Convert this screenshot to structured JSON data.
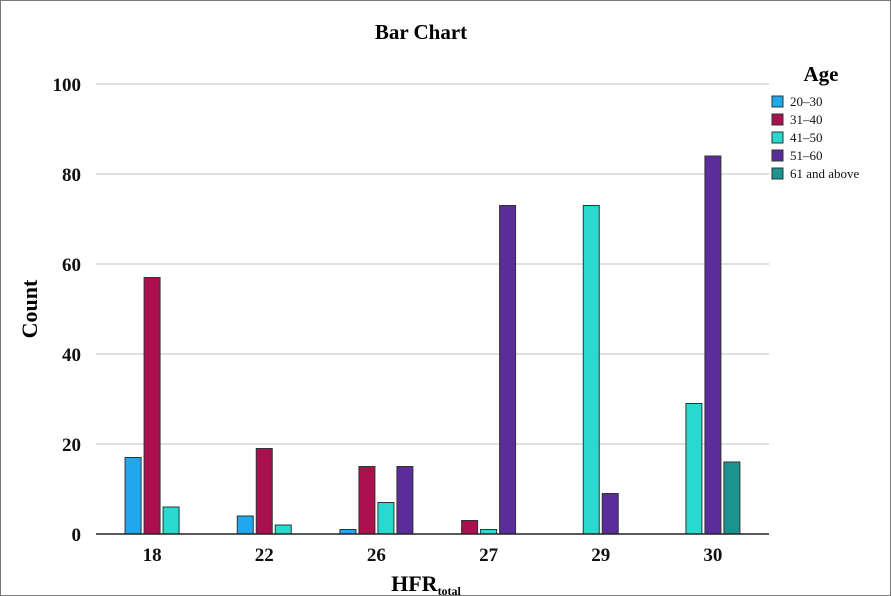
{
  "chart_data": {
    "type": "bar",
    "title": "Bar Chart",
    "xlabel": "HFR",
    "xlabel_subscript": "total",
    "ylabel": "Count",
    "ylim": [
      0,
      100
    ],
    "yticks": [
      0,
      20,
      40,
      60,
      80,
      100
    ],
    "grid": "horizontal",
    "legend_title": "Age",
    "legend_position": "top-right",
    "categories": [
      "18",
      "22",
      "26",
      "27",
      "29",
      "30"
    ],
    "series": [
      {
        "name": "20–30",
        "color": "#1fa8ee",
        "values": [
          17,
          4,
          1,
          0,
          0,
          0
        ]
      },
      {
        "name": "31–40",
        "color": "#a8114e",
        "values": [
          57,
          19,
          15,
          3,
          0,
          0
        ]
      },
      {
        "name": "41–50",
        "color": "#29d8cf",
        "values": [
          6,
          2,
          7,
          1,
          73,
          29
        ]
      },
      {
        "name": "51–60",
        "color": "#5a2c9c",
        "values": [
          0,
          0,
          15,
          73,
          9,
          84
        ]
      },
      {
        "name": "61 and above",
        "color": "#1b9490",
        "values": [
          0,
          0,
          0,
          0,
          0,
          16
        ]
      }
    ]
  }
}
